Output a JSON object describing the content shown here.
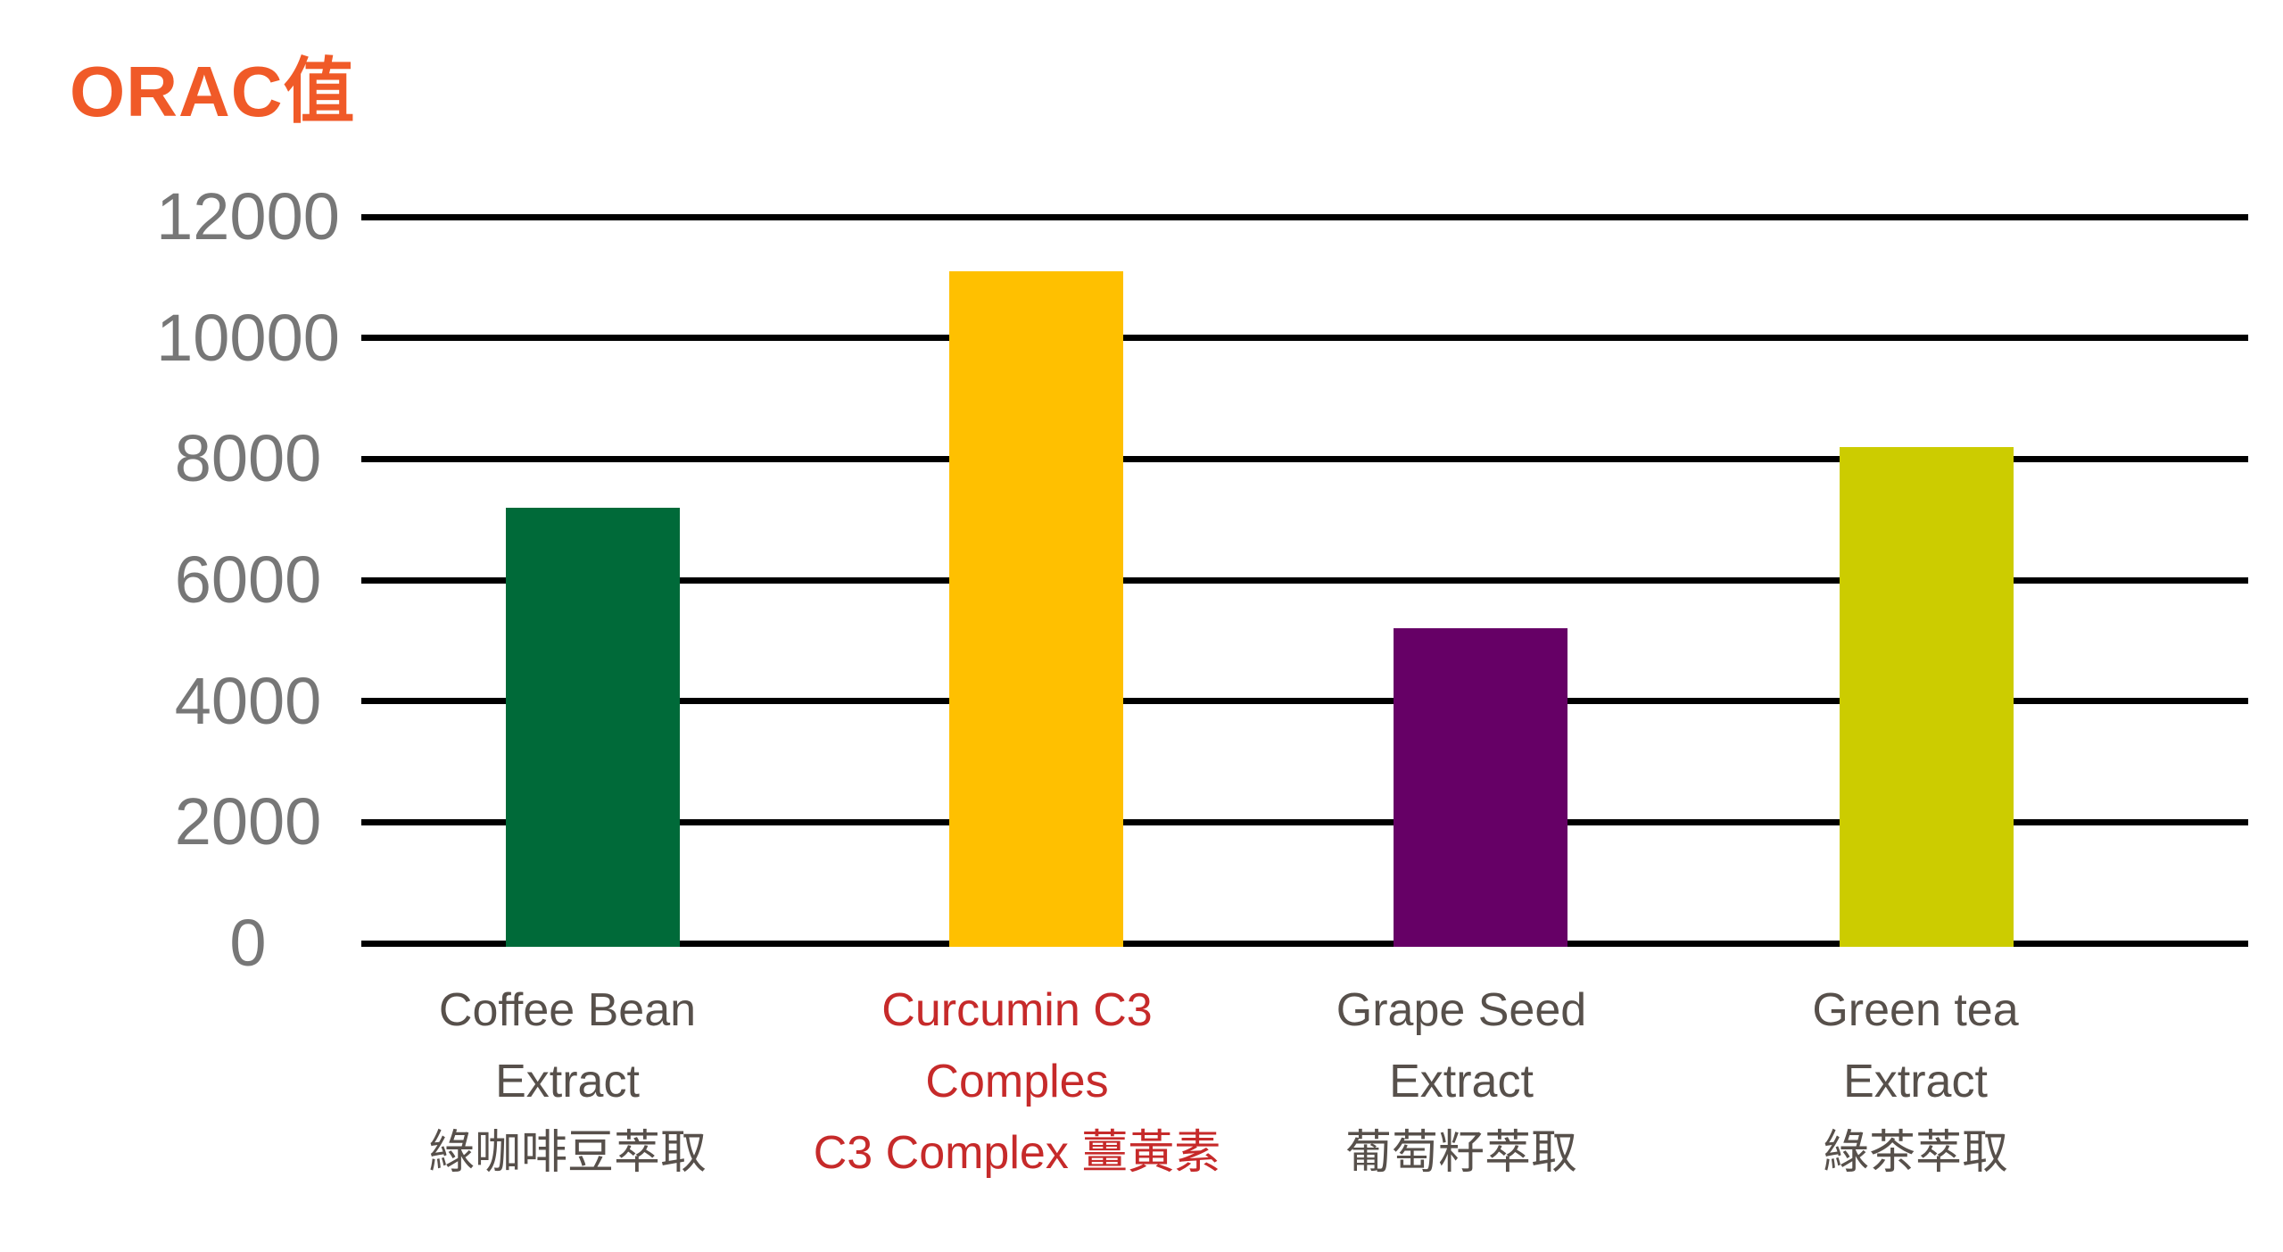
{
  "title": {
    "text": "ORAC值",
    "color": "#F05A28"
  },
  "chart_data": {
    "type": "bar",
    "title": "ORAC值",
    "xlabel": "",
    "ylabel": "",
    "ylim": [
      0,
      12000
    ],
    "y_ticks": [
      0,
      2000,
      4000,
      6000,
      8000,
      10000,
      12000
    ],
    "grid": true,
    "gridline_color": "#000000",
    "tick_label_color": "#777777",
    "legend": false,
    "categories": [
      {
        "lines": [
          "Coffee Bean",
          "Extract",
          "綠咖啡豆萃取"
        ],
        "label_color": "#57504B",
        "slug": "coffee-bean-extract"
      },
      {
        "lines": [
          "Curcumin C3",
          "Comples",
          "C3 Complex 薑黃素"
        ],
        "label_color": "#C62A2A",
        "slug": "curcumin-c3-complex"
      },
      {
        "lines": [
          "Grape Seed",
          "Extract",
          "葡萄籽萃取"
        ],
        "label_color": "#57504B",
        "slug": "grape-seed-extract"
      },
      {
        "lines": [
          "Green tea",
          "Extract",
          "綠茶萃取"
        ],
        "label_color": "#57504B",
        "slug": "green-tea-extract"
      }
    ],
    "values": [
      7200,
      11100,
      5200,
      8200
    ],
    "bar_colors": [
      "#006A39",
      "#FFC000",
      "#660066",
      "#CCCC00"
    ]
  }
}
